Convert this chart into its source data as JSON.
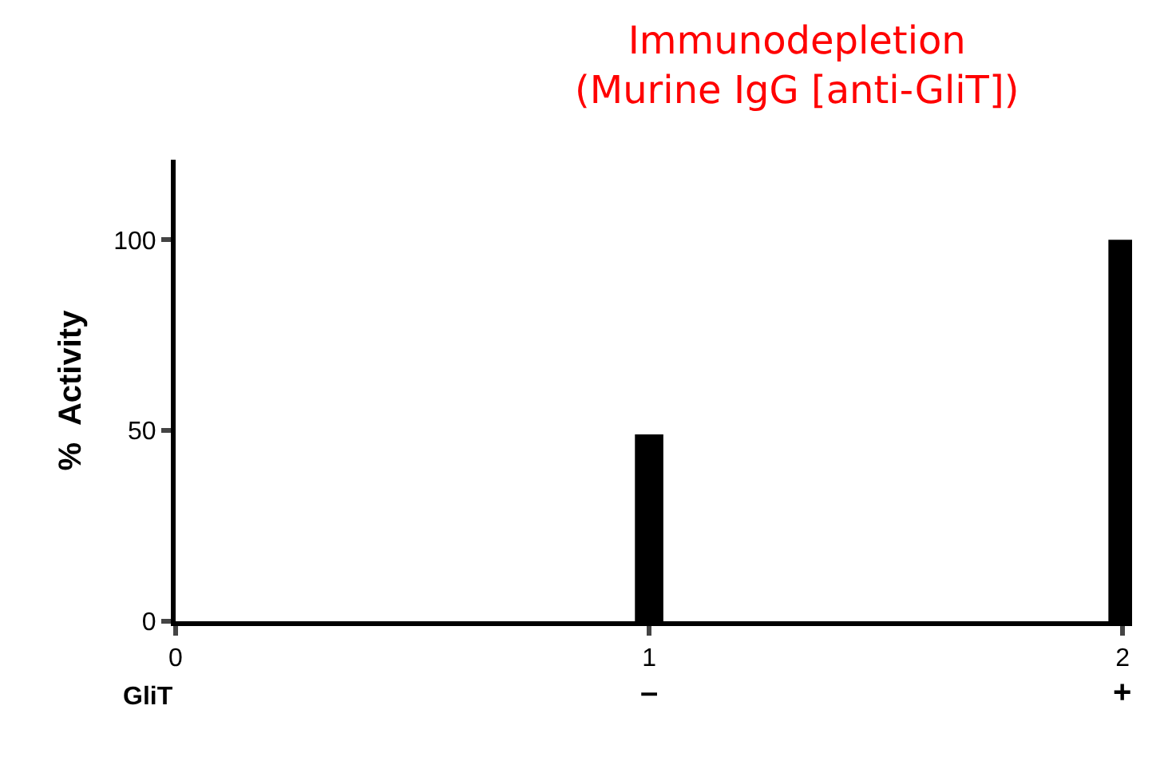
{
  "chart_data": {
    "type": "bar",
    "title": "Immunodepletion\n(Murine IgG [anti-GliT])",
    "ylabel": "%  Activity",
    "x": [
      1,
      2
    ],
    "values": [
      49,
      100
    ],
    "color": "#000000",
    "xlim": [
      0,
      2.02
    ],
    "xticks": [
      0,
      1,
      2
    ],
    "ylim": [
      0,
      121
    ],
    "yticks": [
      0,
      50,
      100
    ],
    "annotations": [
      "GliT",
      "–",
      "+"
    ]
  }
}
